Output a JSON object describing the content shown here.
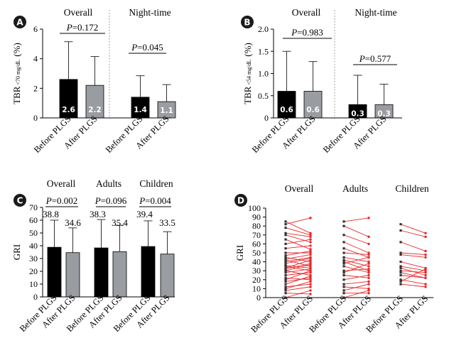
{
  "chart_data": [
    {
      "id": "A",
      "type": "bar",
      "panel_label": "A",
      "ylabel": "TBR",
      "ylabel_sub": "<70 mg/dL",
      "ylabel_unit": "(%)",
      "ylim": [
        0,
        6
      ],
      "yticks": [
        "0",
        "2",
        "4",
        "6"
      ],
      "groups": [
        {
          "title": "Overall",
          "bars": [
            {
              "category": "Before PLGS",
              "value": 2.6,
              "error": 5.15,
              "label": "2.6",
              "color": "#000000"
            },
            {
              "category": "After PLGS",
              "value": 2.2,
              "error": 4.15,
              "label": "2.2",
              "color": "#999da1"
            }
          ],
          "p_label": "P",
          "p_value": "=0.172"
        },
        {
          "title": "Night-time",
          "bars": [
            {
              "category": "Before PLGS",
              "value": 1.4,
              "error": 2.85,
              "label": "1.4",
              "color": "#000000"
            },
            {
              "category": "After PLGS",
              "value": 1.1,
              "error": 2.25,
              "label": "1.1",
              "color": "#999da1"
            }
          ],
          "p_label": "P",
          "p_value": "=0.045"
        }
      ]
    },
    {
      "id": "B",
      "type": "bar",
      "panel_label": "B",
      "ylabel": "TBR",
      "ylabel_sub": "<54 mg/dL",
      "ylabel_unit": "(%)",
      "ylim": [
        0,
        2.0
      ],
      "yticks": [
        "0",
        "0.5",
        "1.0",
        "1.5",
        "2.0"
      ],
      "groups": [
        {
          "title": "Overall",
          "bars": [
            {
              "category": "Before PLGS",
              "value": 0.6,
              "error": 1.5,
              "label": "0.6",
              "color": "#000000"
            },
            {
              "category": "After PLGS",
              "value": 0.6,
              "error": 1.27,
              "label": "0.6",
              "color": "#999da1"
            }
          ],
          "p_label": "P",
          "p_value": "=0.983"
        },
        {
          "title": "Night-time",
          "bars": [
            {
              "category": "Before PLGS",
              "value": 0.3,
              "error": 0.96,
              "label": "0.3",
              "color": "#000000"
            },
            {
              "category": "After PLGS",
              "value": 0.3,
              "error": 0.76,
              "label": "0.3",
              "color": "#999da1"
            }
          ],
          "p_label": "P",
          "p_value": "=0.577"
        }
      ]
    },
    {
      "id": "C",
      "type": "bar",
      "panel_label": "C",
      "ylabel": "GRI",
      "ylim": [
        0,
        70
      ],
      "yticks": [
        "0",
        "10",
        "20",
        "30",
        "40",
        "50",
        "60",
        "70"
      ],
      "groups": [
        {
          "title": "Overall",
          "bars": [
            {
              "category": "Before PLGS",
              "value": 38.8,
              "error": 60,
              "label": "38.8",
              "color": "#000000"
            },
            {
              "category": "After PLGS",
              "value": 34.6,
              "error": 54,
              "label": "34.6",
              "color": "#999da1"
            }
          ],
          "p_label": "P",
          "p_value": "=0.002"
        },
        {
          "title": "Adults",
          "bars": [
            {
              "category": "Before PLGS",
              "value": 38.3,
              "error": 60.5,
              "label": "38.3",
              "color": "#000000"
            },
            {
              "category": "After PLGS",
              "value": 35.4,
              "error": 56,
              "label": "35.4",
              "color": "#999da1"
            }
          ],
          "p_label": "P",
          "p_value": "=0.096"
        },
        {
          "title": "Children",
          "bars": [
            {
              "category": "Before PLGS",
              "value": 39.4,
              "error": 59.5,
              "label": "39.4",
              "color": "#000000"
            },
            {
              "category": "After PLGS",
              "value": 33.5,
              "error": 51,
              "label": "33.5",
              "color": "#999da1"
            }
          ],
          "p_label": "P",
          "p_value": "=0.004"
        }
      ]
    },
    {
      "id": "D",
      "type": "line",
      "panel_label": "D",
      "ylabel": "GRI",
      "ylim": [
        0,
        100
      ],
      "yticks": [
        "0",
        "10",
        "20",
        "30",
        "40",
        "50",
        "60",
        "70",
        "80",
        "90",
        "100"
      ],
      "line_color": "#e8262a",
      "before_marker_color": "#333333",
      "after_marker_color": "#e8262a",
      "groups": [
        {
          "title": "Overall",
          "categories": [
            "Before PLGS",
            "After PLGS"
          ],
          "pairs": [
            [
              85,
              72
            ],
            [
              82,
              89
            ],
            [
              78,
              70
            ],
            [
              72,
              68
            ],
            [
              70,
              62
            ],
            [
              65,
              54
            ],
            [
              60,
              65
            ],
            [
              55,
              58
            ],
            [
              50,
              50
            ],
            [
              47,
              52
            ],
            [
              45,
              40
            ],
            [
              43,
              48
            ],
            [
              42,
              35
            ],
            [
              40,
              45
            ],
            [
              38,
              44
            ],
            [
              36,
              33
            ],
            [
              35,
              30
            ],
            [
              33,
              42
            ],
            [
              32,
              38
            ],
            [
              30,
              37
            ],
            [
              30,
              25
            ],
            [
              28,
              32
            ],
            [
              25,
              28
            ],
            [
              22,
              20
            ],
            [
              20,
              30
            ],
            [
              18,
              22
            ],
            [
              15,
              24
            ],
            [
              12,
              15
            ],
            [
              10,
              18
            ],
            [
              8,
              12
            ],
            [
              5,
              4
            ],
            [
              0,
              8
            ]
          ]
        },
        {
          "title": "Adults",
          "categories": [
            "Before PLGS",
            "After PLGS"
          ],
          "pairs": [
            [
              85,
              89
            ],
            [
              80,
              68
            ],
            [
              70,
              60
            ],
            [
              62,
              50
            ],
            [
              55,
              45
            ],
            [
              50,
              48
            ],
            [
              45,
              40
            ],
            [
              42,
              35
            ],
            [
              40,
              30
            ],
            [
              38,
              45
            ],
            [
              35,
              28
            ],
            [
              30,
              32
            ],
            [
              28,
              38
            ],
            [
              25,
              22
            ],
            [
              20,
              25
            ],
            [
              15,
              18
            ],
            [
              12,
              10
            ],
            [
              8,
              15
            ],
            [
              5,
              5
            ],
            [
              0,
              8
            ]
          ]
        },
        {
          "title": "Children",
          "categories": [
            "Before PLGS",
            "After PLGS"
          ],
          "pairs": [
            [
              82,
              72
            ],
            [
              75,
              68
            ],
            [
              62,
              52
            ],
            [
              50,
              48
            ],
            [
              48,
              45
            ],
            [
              40,
              33
            ],
            [
              35,
              30
            ],
            [
              33,
              25
            ],
            [
              30,
              28
            ],
            [
              28,
              22
            ],
            [
              25,
              22
            ],
            [
              20,
              15
            ],
            [
              18,
              32
            ],
            [
              15,
              12
            ]
          ]
        }
      ]
    }
  ]
}
